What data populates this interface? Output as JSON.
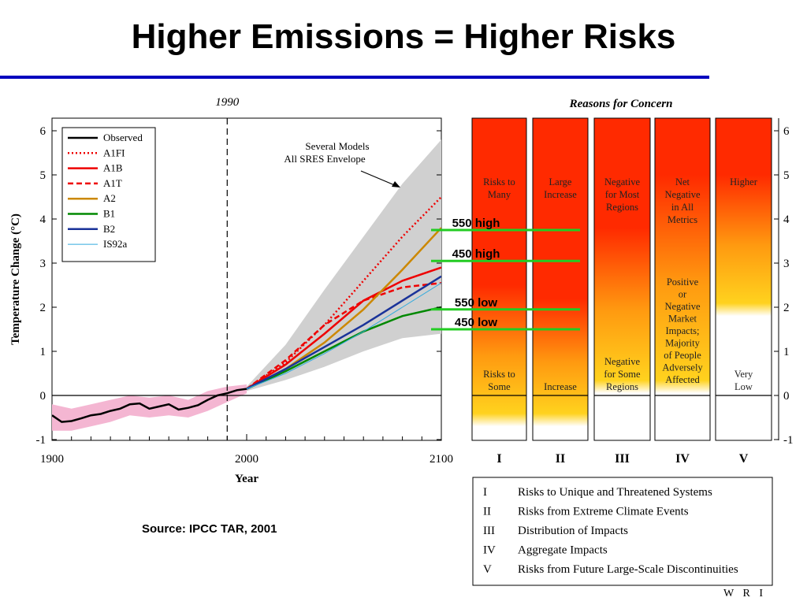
{
  "title": "Higher Emissions = Higher Risks",
  "source": "Source: IPCC TAR, 2001",
  "footer": "W R I",
  "chart_data": [
    {
      "type": "line",
      "xlabel": "Year",
      "ylabel": "Temperature Change (°C)",
      "xlim": [
        1900,
        2100
      ],
      "ylim": [
        -1,
        6
      ],
      "x_ticks": [
        "1900",
        "2000",
        "2100"
      ],
      "y_ticks": [
        "-1",
        "0",
        "1",
        "2",
        "3",
        "4",
        "5",
        "6"
      ],
      "marker_label": "1990",
      "marker_year": 1990,
      "annotation": [
        "Several Models",
        "All SRES Envelope"
      ],
      "legend_position": "top-left",
      "series": [
        {
          "name": "Observed",
          "color": "#000000",
          "dash": "solid",
          "x": [
            1900,
            1905,
            1910,
            1915,
            1920,
            1925,
            1930,
            1935,
            1940,
            1945,
            1950,
            1955,
            1960,
            1965,
            1970,
            1975,
            1980,
            1985,
            1990,
            1995,
            2000
          ],
          "y": [
            -0.45,
            -0.6,
            -0.58,
            -0.52,
            -0.45,
            -0.42,
            -0.35,
            -0.3,
            -0.2,
            -0.18,
            -0.3,
            -0.25,
            -0.2,
            -0.32,
            -0.28,
            -0.22,
            -0.1,
            0.0,
            0.05,
            0.12,
            0.15
          ]
        },
        {
          "name": "A1FI",
          "color": "#ee0000",
          "dash": "dot",
          "x": [
            2000,
            2020,
            2040,
            2060,
            2080,
            2100
          ],
          "y": [
            0.15,
            0.75,
            1.6,
            2.6,
            3.6,
            4.5
          ]
        },
        {
          "name": "A1B",
          "color": "#ee0000",
          "dash": "solid",
          "x": [
            2000,
            2020,
            2040,
            2060,
            2080,
            2100
          ],
          "y": [
            0.15,
            0.7,
            1.4,
            2.15,
            2.6,
            2.9
          ]
        },
        {
          "name": "A1T",
          "color": "#ee0000",
          "dash": "dash",
          "x": [
            2000,
            2020,
            2040,
            2060,
            2080,
            2100
          ],
          "y": [
            0.15,
            0.8,
            1.6,
            2.15,
            2.45,
            2.55
          ]
        },
        {
          "name": "A2",
          "color": "#cc8800",
          "dash": "solid",
          "x": [
            2000,
            2020,
            2040,
            2060,
            2080,
            2100
          ],
          "y": [
            0.15,
            0.6,
            1.2,
            1.95,
            2.85,
            3.8
          ]
        },
        {
          "name": "B1",
          "color": "#008800",
          "dash": "solid",
          "x": [
            2000,
            2020,
            2040,
            2060,
            2080,
            2100
          ],
          "y": [
            0.15,
            0.55,
            1.0,
            1.45,
            1.8,
            2.0
          ]
        },
        {
          "name": "B2",
          "color": "#1a3399",
          "dash": "solid",
          "x": [
            2000,
            2020,
            2040,
            2060,
            2080,
            2100
          ],
          "y": [
            0.15,
            0.6,
            1.1,
            1.6,
            2.15,
            2.7
          ]
        },
        {
          "name": "IS92a",
          "color": "#33aadd",
          "dash": "solid",
          "x": [
            2000,
            2020,
            2040,
            2060,
            2080,
            2100
          ],
          "y": [
            0.15,
            0.5,
            0.95,
            1.45,
            2.0,
            2.55
          ]
        }
      ],
      "envelope": {
        "x": [
          2000,
          2020,
          2040,
          2060,
          2080,
          2100
        ],
        "lower": [
          0.1,
          0.35,
          0.65,
          1.0,
          1.3,
          1.4
        ],
        "upper": [
          0.2,
          1.15,
          2.4,
          3.6,
          4.8,
          5.8
        ]
      },
      "observed_band": {
        "x": [
          1900,
          1910,
          1920,
          1930,
          1940,
          1950,
          1960,
          1970,
          1980,
          1990,
          2000
        ],
        "lower": [
          -0.8,
          -0.8,
          -0.7,
          -0.6,
          -0.45,
          -0.5,
          -0.45,
          -0.5,
          -0.35,
          -0.15,
          0.05
        ],
        "upper": [
          -0.2,
          -0.3,
          -0.2,
          -0.1,
          0.0,
          -0.05,
          0.0,
          -0.1,
          0.1,
          0.2,
          0.25
        ]
      },
      "thresholds": [
        {
          "label": "550 high",
          "value": 3.75
        },
        {
          "label": "450 high",
          "value": 3.05
        },
        {
          "label": "550 low",
          "value": 1.95
        },
        {
          "label": "450 low",
          "value": 1.5
        }
      ]
    },
    {
      "type": "heatmap",
      "title": "Reasons for Concern",
      "ylim": [
        -1,
        6
      ],
      "y_ticks": [
        "-1",
        "0",
        "1",
        "2",
        "3",
        "4",
        "5",
        "6"
      ],
      "columns": [
        {
          "numeral": "I",
          "top_text": [
            "Risks to",
            "Many"
          ],
          "bottom_text": [
            "Risks to",
            "Some"
          ],
          "white_from": -0.7,
          "red_until": 2.5
        },
        {
          "numeral": "II",
          "top_text": [
            "Large",
            "Increase"
          ],
          "bottom_text": [
            "Increase"
          ],
          "white_from": -0.7,
          "red_until": 2.2
        },
        {
          "numeral": "III",
          "top_text": [
            "Negative",
            "for Most",
            "Regions"
          ],
          "bottom_text": [
            "Negative",
            "for Some",
            "Regions"
          ],
          "white_from": 0.05,
          "red_until": 3.8
        },
        {
          "numeral": "IV",
          "top_text": [
            "Net",
            "Negative",
            "in All",
            "Metrics"
          ],
          "mid_text": [
            "Positive",
            "or",
            "Negative",
            "Market",
            "Impacts;",
            "Majority",
            "of People",
            "Adversely",
            "Affected"
          ],
          "white_from": 0.05,
          "red_until": 5.0
        },
        {
          "numeral": "V",
          "top_text": [
            "Higher"
          ],
          "bottom_text": [
            "Very",
            "Low"
          ],
          "white_from": 1.8,
          "red_until": 5.0
        }
      ],
      "key": [
        {
          "numeral": "I",
          "text": "Risks to Unique and Threatened Systems"
        },
        {
          "numeral": "II",
          "text": "Risks from Extreme Climate Events"
        },
        {
          "numeral": "III",
          "text": "Distribution of Impacts"
        },
        {
          "numeral": "IV",
          "text": "Aggregate Impacts"
        },
        {
          "numeral": "V",
          "text": "Risks from Future Large-Scale Discontinuities"
        }
      ]
    }
  ],
  "colors": {
    "title_rule": "#0000bf",
    "threshold": "#22cc22",
    "envelope": "#d0d0d0",
    "observed_band": "#f4b6d2",
    "concern_red": "#ff2a00",
    "concern_yellow": "#ffd21e"
  }
}
